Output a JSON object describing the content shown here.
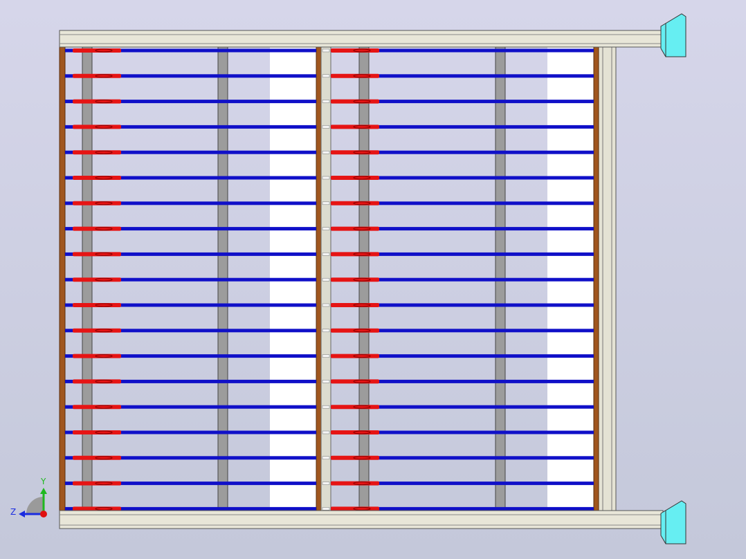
{
  "axis_triad": {
    "y_label": "Y",
    "z_label": "Z"
  }
}
